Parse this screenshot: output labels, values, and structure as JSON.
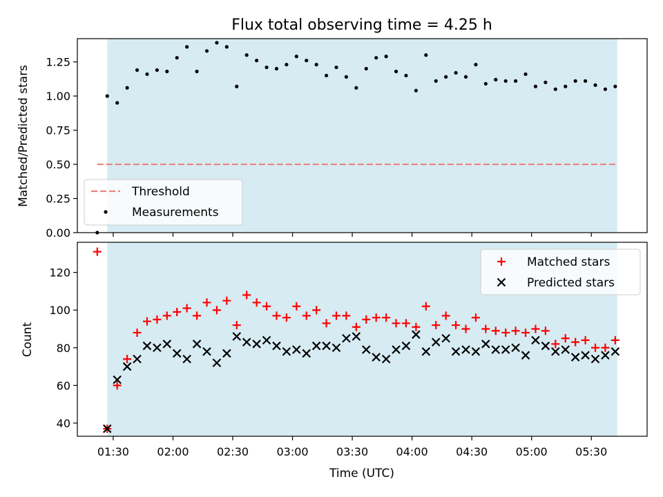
{
  "chart_data": [
    {
      "type": "scatter",
      "title": "Flux total observing time = 4.25 h",
      "xlabel": "",
      "ylabel": "Matched/Predicted stars",
      "ylim": [
        0.0,
        1.42
      ],
      "yticks": [
        "0.00",
        "0.25",
        "0.50",
        "0.75",
        "1.00",
        "1.25"
      ],
      "shaded_span_minutes": [
        87,
        343
      ],
      "shade_color": "#add8e6",
      "threshold": 0.5,
      "threshold_color": "#f08080",
      "legend_position": "lower-left",
      "legend": [
        "Threshold",
        "Measurements"
      ],
      "series": [
        {
          "name": "Measurements",
          "marker": "dot",
          "color": "#000000",
          "time": [
            "01:22",
            "01:27",
            "01:32",
            "01:37",
            "01:42",
            "01:47",
            "01:52",
            "01:57",
            "02:02",
            "02:07",
            "02:12",
            "02:17",
            "02:22",
            "02:27",
            "02:32",
            "02:37",
            "02:42",
            "02:47",
            "02:52",
            "02:57",
            "03:02",
            "03:07",
            "03:12",
            "03:17",
            "03:22",
            "03:27",
            "03:32",
            "03:37",
            "03:42",
            "03:47",
            "03:52",
            "03:57",
            "04:02",
            "04:07",
            "04:12",
            "04:17",
            "04:22",
            "04:27",
            "04:32",
            "04:37",
            "04:42",
            "04:47",
            "04:52",
            "04:57",
            "05:02",
            "05:07",
            "05:12",
            "05:17",
            "05:22",
            "05:27",
            "05:32",
            "05:37",
            "05:42"
          ],
          "values": [
            0.0,
            1.0,
            0.95,
            1.06,
            1.19,
            1.16,
            1.19,
            1.18,
            1.28,
            1.36,
            1.18,
            1.33,
            1.39,
            1.36,
            1.07,
            1.3,
            1.26,
            1.21,
            1.2,
            1.23,
            1.29,
            1.26,
            1.23,
            1.15,
            1.21,
            1.14,
            1.06,
            1.2,
            1.28,
            1.29,
            1.18,
            1.15,
            1.04,
            1.3,
            1.11,
            1.14,
            1.17,
            1.14,
            1.23,
            1.09,
            1.12,
            1.11,
            1.11,
            1.16,
            1.07,
            1.1,
            1.05,
            1.07,
            1.11,
            1.11,
            1.08,
            1.05,
            1.07
          ]
        }
      ]
    },
    {
      "type": "scatter",
      "title": "",
      "xlabel": "Time (UTC)",
      "ylabel": "Count",
      "ylim": [
        33,
        136
      ],
      "yticks": [
        "40",
        "60",
        "80",
        "100",
        "120"
      ],
      "xticks": [
        "01:30",
        "02:00",
        "02:30",
        "03:00",
        "03:30",
        "04:00",
        "04:30",
        "05:00",
        "05:30"
      ],
      "xlim_minutes": [
        72,
        358
      ],
      "legend_position": "upper-right",
      "legend": [
        "Matched stars",
        "Predicted stars"
      ],
      "series": [
        {
          "name": "Matched stars",
          "marker": "plus",
          "color": "#ff0000",
          "time": [
            "01:22",
            "01:27",
            "01:32",
            "01:37",
            "01:42",
            "01:47",
            "01:52",
            "01:57",
            "02:02",
            "02:07",
            "02:12",
            "02:17",
            "02:22",
            "02:27",
            "02:32",
            "02:37",
            "02:42",
            "02:47",
            "02:52",
            "02:57",
            "03:02",
            "03:07",
            "03:12",
            "03:17",
            "03:22",
            "03:27",
            "03:32",
            "03:37",
            "03:42",
            "03:47",
            "03:52",
            "03:57",
            "04:02",
            "04:07",
            "04:12",
            "04:17",
            "04:22",
            "04:27",
            "04:32",
            "04:37",
            "04:42",
            "04:47",
            "04:52",
            "04:57",
            "05:02",
            "05:07",
            "05:12",
            "05:17",
            "05:22",
            "05:27",
            "05:32",
            "05:37",
            "05:42"
          ],
          "values": [
            131,
            37,
            60,
            74,
            88,
            94,
            95,
            97,
            99,
            101,
            97,
            104,
            100,
            105,
            92,
            108,
            104,
            102,
            97,
            96,
            102,
            97,
            100,
            93,
            97,
            97,
            91,
            95,
            96,
            96,
            93,
            93,
            91,
            102,
            92,
            97,
            92,
            90,
            96,
            90,
            89,
            88,
            89,
            88,
            90,
            89,
            82,
            85,
            83,
            84,
            80,
            80,
            84
          ]
        },
        {
          "name": "Predicted stars",
          "marker": "x",
          "color": "#000000",
          "time": [
            "01:27",
            "01:32",
            "01:37",
            "01:42",
            "01:47",
            "01:52",
            "01:57",
            "02:02",
            "02:07",
            "02:12",
            "02:17",
            "02:22",
            "02:27",
            "02:32",
            "02:37",
            "02:42",
            "02:47",
            "02:52",
            "02:57",
            "03:02",
            "03:07",
            "03:12",
            "03:17",
            "03:22",
            "03:27",
            "03:32",
            "03:37",
            "03:42",
            "03:47",
            "03:52",
            "03:57",
            "04:02",
            "04:07",
            "04:12",
            "04:17",
            "04:22",
            "04:27",
            "04:32",
            "04:37",
            "04:42",
            "04:47",
            "04:52",
            "04:57",
            "05:02",
            "05:07",
            "05:12",
            "05:17",
            "05:22",
            "05:27",
            "05:32",
            "05:37",
            "05:42"
          ],
          "values": [
            37,
            63,
            70,
            74,
            81,
            80,
            82,
            77,
            74,
            82,
            78,
            72,
            77,
            86,
            83,
            82,
            84,
            81,
            78,
            79,
            77,
            81,
            81,
            80,
            85,
            86,
            79,
            75,
            74,
            79,
            81,
            87,
            78,
            83,
            85,
            78,
            79,
            78,
            82,
            79,
            79,
            80,
            76,
            84,
            81,
            78,
            79,
            75,
            76,
            74,
            76,
            78
          ]
        }
      ]
    }
  ]
}
